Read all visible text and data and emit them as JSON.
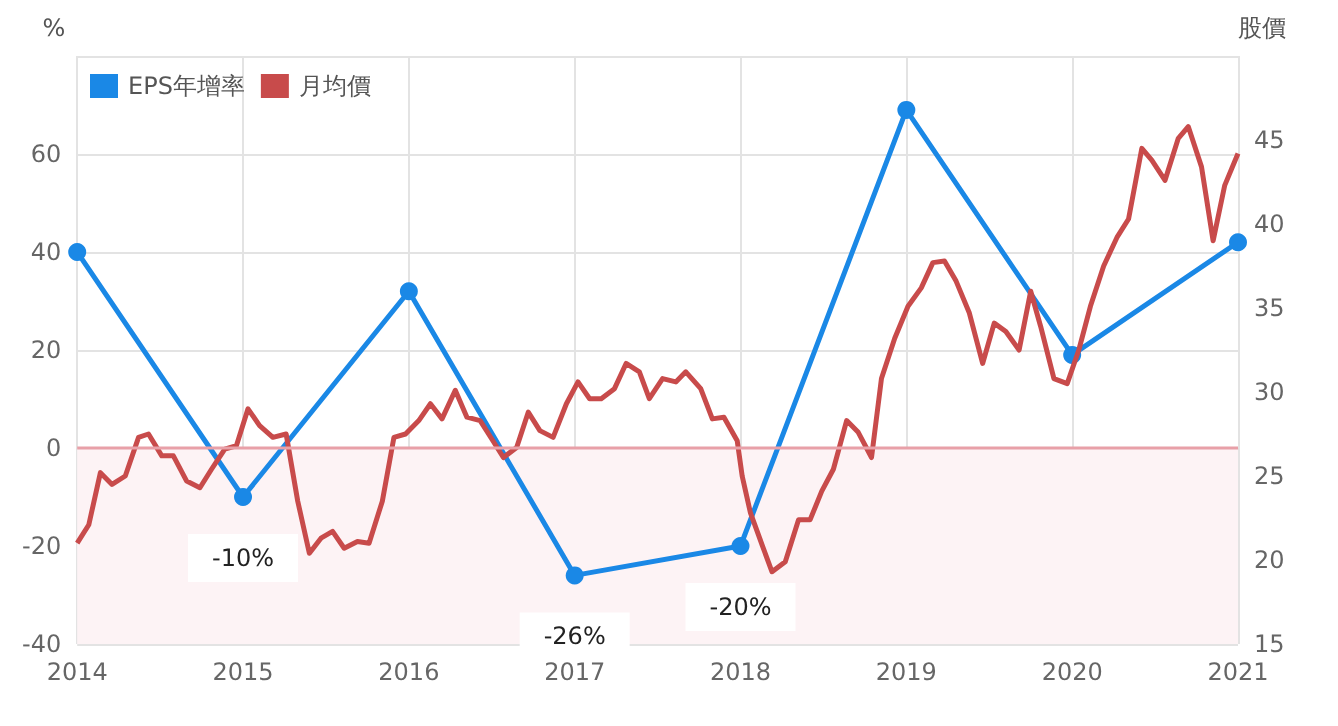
{
  "chart_data": {
    "type": "line",
    "ylabel": "%",
    "y2label": "股價",
    "xlim": [
      2014,
      2021
    ],
    "xticks": [
      2014,
      2015,
      2016,
      2017,
      2018,
      2019,
      2020,
      2021
    ],
    "ylim": [
      -40,
      80
    ],
    "yticks": [
      -40,
      -20,
      0,
      20,
      40,
      60,
      {
        "value": 80,
        "label": null
      }
    ],
    "y2lim": [
      15,
      50
    ],
    "y2ticks": [
      15,
      20,
      25,
      30,
      35,
      40,
      45
    ],
    "grid": true,
    "legend": "top left",
    "line_style": "solid",
    "ref_lines": [
      {
        "axis": "y",
        "value": 0,
        "color": "#e8a0a8"
      }
    ],
    "bands": [
      {
        "axis": "y",
        "from": -40,
        "to": 0,
        "color": "#fdf3f5"
      }
    ],
    "series": [
      {
        "name": "EPS年增率",
        "color": "#1a88e6",
        "marker": "circle",
        "x": [
          2014,
          2015,
          2016,
          2017,
          2018,
          2019,
          2020,
          2021
        ],
        "values": [
          40,
          -10,
          32,
          -26,
          -20,
          69,
          19,
          42
        ],
        "value_labels": [
          null,
          "-10%",
          null,
          "-26%",
          "-20%",
          null,
          null,
          null
        ]
      },
      {
        "name": "月均價",
        "color": "#c84b4b",
        "marker": "none",
        "axis": "y2",
        "x": [
          2014.0,
          2014.07,
          2014.14,
          2014.21,
          2014.29,
          2014.37,
          2014.43,
          2014.51,
          2014.58,
          2014.66,
          2014.74,
          2014.81,
          2014.89,
          2014.96,
          2015.03,
          2015.1,
          2015.18,
          2015.26,
          2015.33,
          2015.4,
          2015.47,
          2015.54,
          2015.61,
          2015.69,
          2015.76,
          2015.84,
          2015.91,
          2015.98,
          2016.06,
          2016.13,
          2016.2,
          2016.28,
          2016.35,
          2016.43,
          2016.5,
          2016.57,
          2016.65,
          2016.72,
          2016.79,
          2016.87,
          2016.95,
          2017.02,
          2017.09,
          2017.16,
          2017.24,
          2017.31,
          2017.39,
          2017.45,
          2017.53,
          2017.61,
          2017.67,
          2017.76,
          2017.83,
          2017.9,
          2017.98,
          2018.01,
          2018.06,
          2018.13,
          2018.19,
          2018.27,
          2018.35,
          2018.42,
          2018.49,
          2018.56,
          2018.64,
          2018.71,
          2018.79,
          2018.85,
          2018.93,
          2019.01,
          2019.09,
          2019.16,
          2019.23,
          2019.3,
          2019.38,
          2019.46,
          2019.53,
          2019.6,
          2019.68,
          2019.75,
          2019.81,
          2019.89,
          2019.97,
          2020.04,
          2020.11,
          2020.19,
          2020.27,
          2020.34,
          2020.42,
          2020.48,
          2020.56,
          2020.64,
          2020.7,
          2020.78,
          2020.85,
          2020.92,
          2021.0
        ],
        "values": [
          21.0,
          22.1,
          25.2,
          24.5,
          25.0,
          27.3,
          27.5,
          26.2,
          26.2,
          24.7,
          24.3,
          25.4,
          26.6,
          26.8,
          29.0,
          28.0,
          27.3,
          27.5,
          23.5,
          20.4,
          21.3,
          21.7,
          20.7,
          21.1,
          21.0,
          23.5,
          27.3,
          27.5,
          28.3,
          29.3,
          28.4,
          30.1,
          28.5,
          28.3,
          27.2,
          26.1,
          26.7,
          28.8,
          27.7,
          27.3,
          29.3,
          30.6,
          29.6,
          29.6,
          30.2,
          31.7,
          31.2,
          29.6,
          30.8,
          30.6,
          31.2,
          30.2,
          28.4,
          28.5,
          27.1,
          25.0,
          22.8,
          20.9,
          19.3,
          19.9,
          22.4,
          22.4,
          24.1,
          25.4,
          28.3,
          27.6,
          26.1,
          30.8,
          33.2,
          35.1,
          36.2,
          37.7,
          37.8,
          36.6,
          34.7,
          31.7,
          34.1,
          33.6,
          32.5,
          36.0,
          33.9,
          30.8,
          30.5,
          32.5,
          35.1,
          37.5,
          39.2,
          40.3,
          44.5,
          43.8,
          42.6,
          45.1,
          45.8,
          43.4,
          39.0,
          42.3,
          44.2
        ]
      }
    ]
  }
}
